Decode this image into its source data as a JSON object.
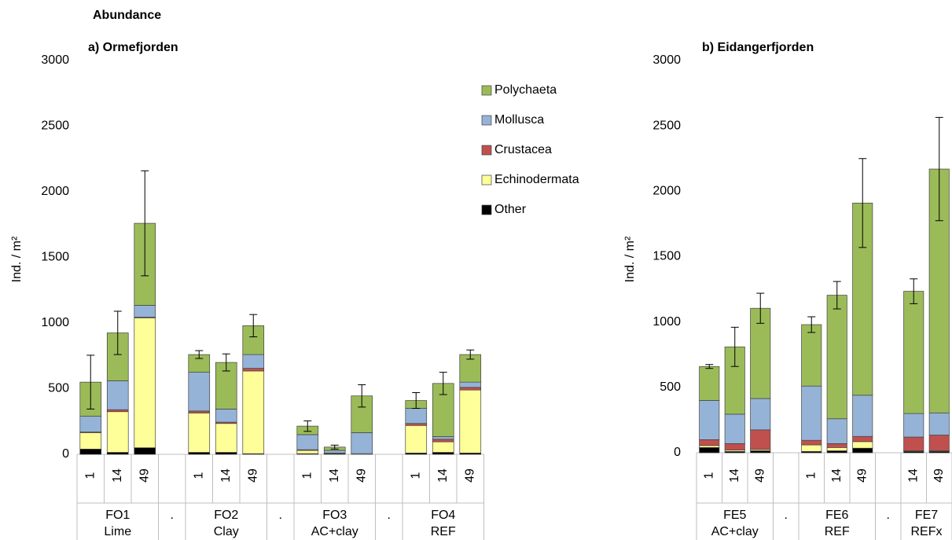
{
  "title": "Abundance",
  "chart_data": [
    {
      "type": "bar",
      "stacked": true,
      "title": "a)  Ormefjorden",
      "y_label": "Ind. / m²",
      "ylim": [
        0,
        3000
      ],
      "yticks": [
        0,
        500,
        1000,
        1500,
        2000,
        2500,
        3000
      ],
      "groups": [
        {
          "label": [
            "FO1",
            "Lime"
          ],
          "categories": [
            "1",
            "14",
            "49"
          ]
        },
        {
          "label": [
            "."
          ],
          "categories": [
            null
          ]
        },
        {
          "label": [
            "FO2",
            "Clay"
          ],
          "categories": [
            "1",
            "14",
            "49"
          ]
        },
        {
          "label": [
            "."
          ],
          "categories": [
            null
          ]
        },
        {
          "label": [
            "FO3",
            "AC+clay"
          ],
          "categories": [
            "1",
            "14",
            "49"
          ]
        },
        {
          "label": [
            "."
          ],
          "categories": [
            null
          ]
        },
        {
          "label": [
            "FO4",
            "REF"
          ],
          "categories": [
            "1",
            "14",
            "49"
          ]
        }
      ],
      "series": [
        {
          "name": "Other",
          "color": "#000000",
          "values": [
            40,
            15,
            50,
            null,
            15,
            15,
            5,
            null,
            5,
            5,
            0,
            null,
            10,
            15,
            10
          ]
        },
        {
          "name": "Echinodermata",
          "color": "#ffff99",
          "values": [
            125,
            310,
            990,
            null,
            300,
            220,
            630,
            null,
            25,
            5,
            5,
            null,
            210,
            80,
            480
          ]
        },
        {
          "name": "Crustacea",
          "color": "#c0504d",
          "values": [
            5,
            15,
            5,
            null,
            15,
            10,
            20,
            null,
            5,
            0,
            0,
            null,
            15,
            20,
            20
          ]
        },
        {
          "name": "Mollusca",
          "color": "#95b3d7",
          "values": [
            120,
            220,
            90,
            null,
            295,
            100,
            105,
            null,
            115,
            20,
            160,
            null,
            115,
            20,
            40
          ]
        },
        {
          "name": "Polychaeta",
          "color": "#9bbb59",
          "values": [
            260,
            365,
            625,
            null,
            135,
            355,
            220,
            null,
            65,
            25,
            280,
            null,
            60,
            405,
            210
          ]
        }
      ],
      "errors": [
        205,
        165,
        400,
        null,
        30,
        65,
        85,
        null,
        40,
        15,
        85,
        null,
        60,
        85,
        35
      ]
    },
    {
      "type": "bar",
      "stacked": true,
      "title": "b)  Eidangerfjorden",
      "y_label": "Ind. / m²",
      "ylim": [
        0,
        3000
      ],
      "yticks": [
        0,
        500,
        1000,
        1500,
        2000,
        2500,
        3000
      ],
      "groups": [
        {
          "label": [
            "FE5",
            "AC+clay"
          ],
          "categories": [
            "1",
            "14",
            "49"
          ]
        },
        {
          "label": [
            "."
          ],
          "categories": [
            null
          ]
        },
        {
          "label": [
            "FE6",
            "REF"
          ],
          "categories": [
            "1",
            "14",
            "49"
          ]
        },
        {
          "label": [
            "."
          ],
          "categories": [
            null
          ]
        },
        {
          "label": [
            "FE7",
            "REFx"
          ],
          "categories": [
            "14",
            "49"
          ]
        }
      ],
      "series": [
        {
          "values": [
            40,
            10,
            15,
            null,
            10,
            15,
            35,
            null,
            10,
            10
          ]
        },
        {
          "values": [
            15,
            10,
            10,
            null,
            50,
            25,
            50,
            null,
            5,
            5
          ]
        },
        {
          "values": [
            45,
            50,
            150,
            null,
            35,
            30,
            40,
            null,
            105,
            120
          ]
        },
        {
          "values": [
            300,
            225,
            240,
            null,
            415,
            190,
            315,
            null,
            180,
            170
          ]
        },
        {
          "values": [
            260,
            515,
            690,
            null,
            470,
            945,
            1470,
            null,
            935,
            1865
          ]
        }
      ],
      "errors": [
        15,
        150,
        115,
        null,
        60,
        105,
        340,
        null,
        95,
        395
      ]
    }
  ]
}
